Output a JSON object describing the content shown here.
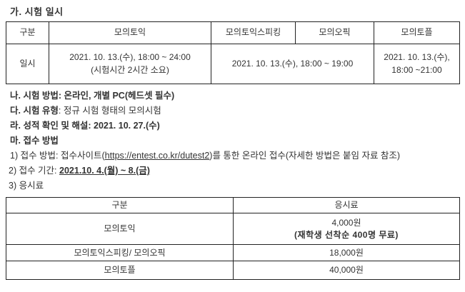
{
  "heading_a": "가. 시험 일시",
  "schedule_table": {
    "headers": [
      "구분",
      "모의토익",
      "모의토익스피킹",
      "모의오픽",
      "모의토플"
    ],
    "row_label": "일시",
    "toeic_line1": "2021. 10. 13.(수), 18:00 ~ 24:00",
    "toeic_line2": "(시험시간 2시간 소요)",
    "speaking_opic_merged": "2021. 10. 13.(수), 18:00 ~ 19:00",
    "toefl_line1": "2021. 10. 13.(수),",
    "toefl_line2": "18:00 ~21:00"
  },
  "notes": {
    "b": "나. 시험 방법: 온라인, 개별 PC(헤드셋 필수)",
    "c_bold": "다. 시험 유형",
    "c_rest": ": 정규 시험 형태의 모의시험",
    "d": "라. 성적 확인 및 해설: 2021. 10. 27.(수)",
    "e": "마. 접수 방법",
    "item1_prefix": "1) 접수 방법: 접수사이트(",
    "item1_url": "https://entest.co.kr/dutest2",
    "item1_suffix": ")를 통한 온라인 접수(자세한 방법은 붙임 자료 참조)",
    "item2_prefix": "2) 접수 기간: ",
    "item2_period": "2021.10. 4.(월) ~ 8.(금)",
    "item3": "3) 응시료"
  },
  "fee_table": {
    "headers": [
      "구분",
      "응시료"
    ],
    "rows": [
      {
        "label": "모의토익",
        "fee_line1": "4,000원",
        "fee_line2": "(재학생 선착순 400명 무료)"
      },
      {
        "label": "모의토익스피킹/ 모의오픽",
        "fee": "18,000원"
      },
      {
        "label": "모의토플",
        "fee": "40,000원"
      }
    ]
  },
  "colors": {
    "text": "#333333",
    "border": "#222222",
    "background": "#ffffff"
  }
}
